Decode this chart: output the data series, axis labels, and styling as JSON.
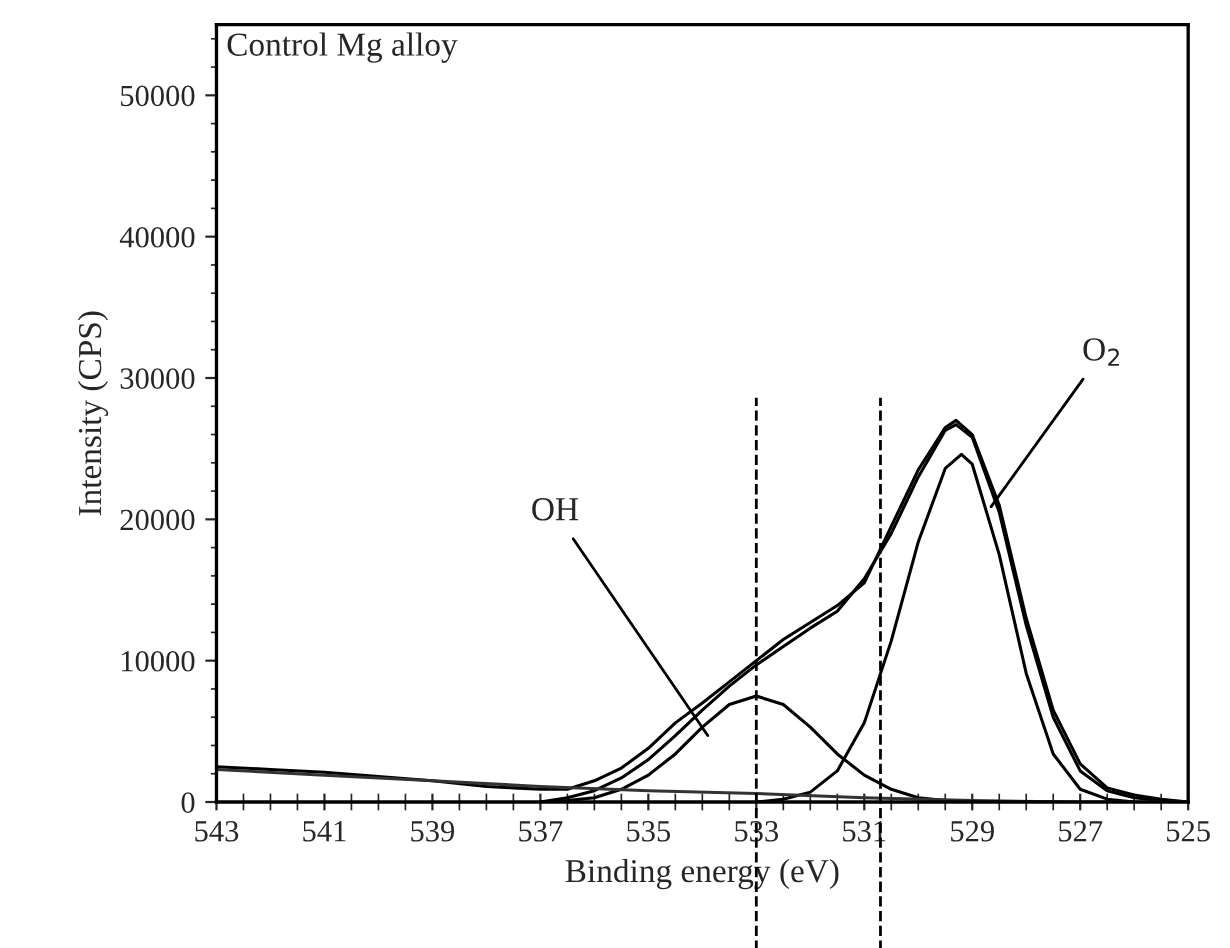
{
  "chart_data": {
    "type": "line",
    "title": "Control Mg alloy",
    "xlabel": "Binding energy (eV)",
    "ylabel": "Intensity (CPS)",
    "xlim": [
      543,
      525
    ],
    "xticks": [
      543,
      541,
      539,
      537,
      535,
      533,
      531,
      529,
      527,
      525
    ],
    "ylim": [
      0,
      55000
    ],
    "yticks": [
      0,
      10000,
      20000,
      30000,
      40000,
      50000
    ],
    "grid": false,
    "marker": "none",
    "line_style": "solid",
    "series": [
      {
        "color": "#000000",
        "x": [
          543,
          542,
          541,
          540,
          539,
          538,
          537.5,
          537,
          536.5,
          536,
          535.5,
          535,
          534.5,
          534,
          533.5,
          533,
          532.5,
          532,
          531.5,
          531,
          530.5,
          530,
          529.5,
          529.3,
          529,
          528.5,
          528,
          527.5,
          527,
          526.5,
          526,
          525.5,
          525
        ],
        "values": [
          2500,
          2300,
          2100,
          1800,
          1500,
          1100,
          1000,
          900,
          900,
          1500,
          2400,
          3800,
          5600,
          7000,
          8500,
          10000,
          11500,
          12700,
          13900,
          15500,
          19500,
          23500,
          26500,
          27000,
          26000,
          21000,
          13000,
          6500,
          2700,
          1000,
          500,
          200,
          0
        ]
      },
      {
        "color": "#000000",
        "x": [
          537,
          536.5,
          536,
          535.5,
          535,
          534.5,
          534,
          533.5,
          533,
          532.5,
          532,
          531.5,
          531,
          530.5,
          530,
          529.5,
          529.3,
          529,
          528.5,
          528,
          527.5,
          527,
          526.5,
          526,
          525.5,
          525
        ],
        "values": [
          0,
          300,
          800,
          1700,
          3000,
          4700,
          6500,
          8200,
          9700,
          11000,
          12300,
          13500,
          15800,
          19000,
          23000,
          26300,
          26700,
          25800,
          20500,
          12500,
          6000,
          2200,
          800,
          300,
          100,
          0
        ]
      },
      {
        "color": "#000000",
        "x": [
          537,
          536.5,
          536,
          535.5,
          535,
          534.5,
          534,
          533.5,
          533,
          532.5,
          532,
          531.5,
          531,
          530.5,
          530,
          529.5,
          529
        ],
        "values": [
          0,
          100,
          300,
          900,
          1900,
          3400,
          5300,
          6900,
          7500,
          6900,
          5300,
          3400,
          1900,
          900,
          300,
          100,
          0
        ]
      },
      {
        "color": "#000000",
        "x": [
          533,
          532.5,
          532,
          531.5,
          531,
          530.5,
          530,
          529.5,
          529.2,
          529,
          528.5,
          528,
          527.5,
          527,
          526.5,
          526
        ],
        "values": [
          0,
          200,
          700,
          2200,
          5600,
          11400,
          18400,
          23600,
          24600,
          23900,
          17500,
          9100,
          3400,
          900,
          200,
          0
        ]
      },
      {
        "color": "#333333",
        "x": [
          543,
          541,
          539,
          537,
          535,
          533,
          531,
          529,
          527,
          525
        ],
        "values": [
          2300,
          1900,
          1500,
          1100,
          800,
          600,
          300,
          100,
          0,
          0
        ]
      }
    ],
    "ref_lines": [
      {
        "axis": "x",
        "value": 533.0,
        "line_style": "dashed",
        "color": "#000000"
      },
      {
        "axis": "x",
        "value": 530.7,
        "line_style": "dashed",
        "color": "#000000"
      }
    ],
    "annotations": [
      {
        "text": "OH",
        "x": 533.9,
        "y": 4700
      },
      {
        "text": "O$_{2}$",
        "x": 528.65,
        "y": 20900
      }
    ]
  }
}
